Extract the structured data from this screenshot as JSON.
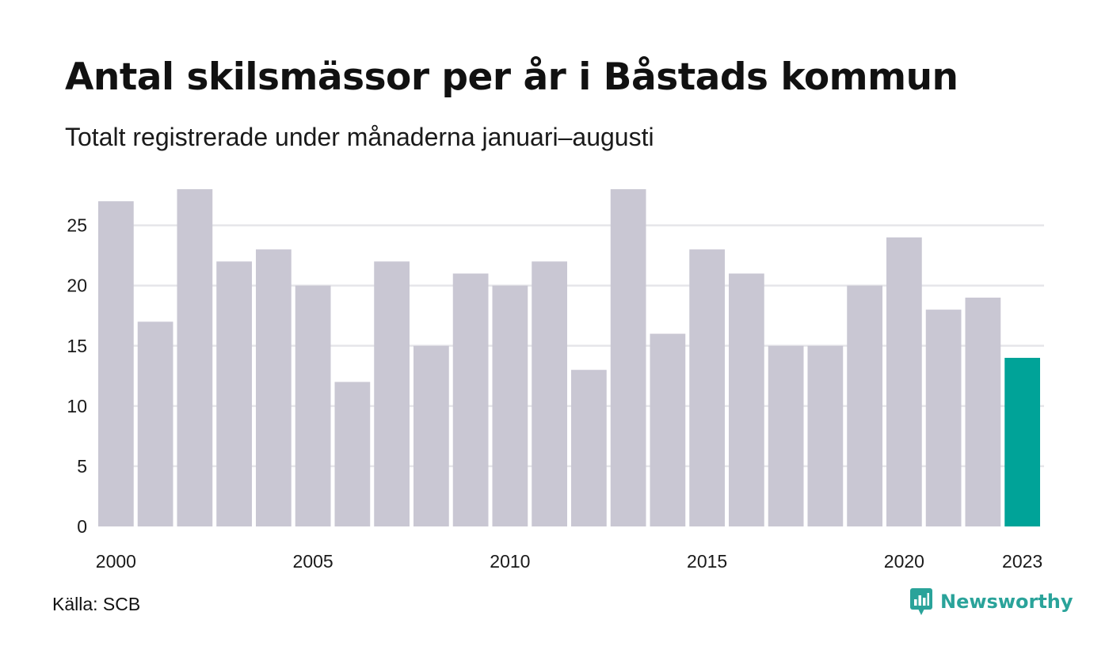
{
  "chart_data": {
    "type": "bar",
    "title": "Antal skilsmässor per år i Båstads kommun",
    "subtitle": "Totalt registrerade under månaderna januari–augusti",
    "categories": [
      "2000",
      "2001",
      "2002",
      "2003",
      "2004",
      "2005",
      "2006",
      "2007",
      "2008",
      "2009",
      "2010",
      "2011",
      "2012",
      "2013",
      "2014",
      "2015",
      "2016",
      "2017",
      "2018",
      "2019",
      "2020",
      "2021",
      "2022",
      "2023"
    ],
    "values": [
      27,
      17,
      28,
      22,
      23,
      20,
      12,
      22,
      15,
      21,
      20,
      22,
      13,
      28,
      16,
      23,
      21,
      15,
      15,
      20,
      24,
      18,
      19,
      14
    ],
    "x_tick_labels": [
      "2000",
      "2005",
      "2010",
      "2015",
      "2020",
      "2023"
    ],
    "y_ticks": [
      0,
      5,
      10,
      15,
      20,
      25
    ],
    "ylim": [
      0,
      28
    ],
    "xlabel": "",
    "ylabel": "",
    "grid": true,
    "colors": {
      "bar": "#c9c7d3",
      "highlight_bar": "#00a398",
      "grid": "#e6e6ea"
    },
    "highlight_category": "2023"
  },
  "footer": {
    "source": "Källa: SCB",
    "brand": "Newsworthy",
    "brand_icon": "newsworthy-logo-icon"
  }
}
